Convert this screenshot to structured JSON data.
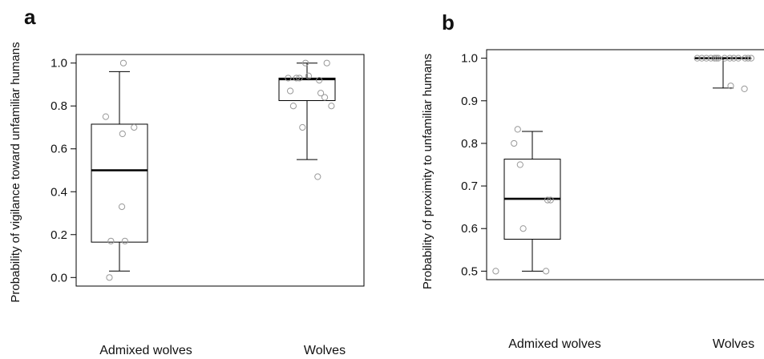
{
  "chart_data": [
    {
      "panel": "a",
      "type": "box",
      "ylabel": "Probability of vigilance toward unfamiliar humans",
      "categories": [
        "Admixed wolves",
        "Wolves"
      ],
      "ylim": [
        -0.04,
        1.04
      ],
      "yticks": [
        "0.0",
        "0.2",
        "0.4",
        "0.6",
        "0.8",
        "1.0"
      ],
      "grid": false,
      "boxes": [
        {
          "whisker_low": 0.03,
          "q1": 0.165,
          "median": 0.5,
          "q3": 0.715,
          "whisker_high": 0.96
        },
        {
          "whisker_low": 0.55,
          "q1": 0.825,
          "median": 0.925,
          "q3": 0.93,
          "whisker_high": 1.0
        }
      ],
      "points": [
        [
          {
            "j": 0.13,
            "y": 1.0
          },
          {
            "j": -0.45,
            "y": 0.75
          },
          {
            "j": 0.48,
            "y": 0.7
          },
          {
            "j": 0.1,
            "y": 0.67
          },
          {
            "j": 0.08,
            "y": 0.33
          },
          {
            "j": -0.28,
            "y": 0.17
          },
          {
            "j": 0.18,
            "y": 0.17
          },
          {
            "j": -0.33,
            "y": 0.0
          }
        ],
        [
          {
            "j": -0.62,
            "y": 0.93
          },
          {
            "j": -0.35,
            "y": 0.93
          },
          {
            "j": -0.25,
            "y": 0.93
          },
          {
            "j": -0.55,
            "y": 0.87
          },
          {
            "j": -0.45,
            "y": 0.8
          },
          {
            "j": -0.05,
            "y": 1.0
          },
          {
            "j": 0.05,
            "y": 0.94
          },
          {
            "j": 0.4,
            "y": 0.92
          },
          {
            "j": 0.65,
            "y": 1.0
          },
          {
            "j": 0.45,
            "y": 0.86
          },
          {
            "j": 0.58,
            "y": 0.84
          },
          {
            "j": 0.8,
            "y": 0.8
          },
          {
            "j": -0.15,
            "y": 0.7
          },
          {
            "j": 0.35,
            "y": 0.47
          }
        ]
      ]
    },
    {
      "panel": "b",
      "type": "box",
      "ylabel": "Probability of proximity to unfamiliar humans",
      "categories": [
        "Admixed wolves",
        "Wolves"
      ],
      "ylim": [
        0.48,
        1.02
      ],
      "yticks": [
        "0.5",
        "0.6",
        "0.7",
        "0.8",
        "0.9",
        "1.0"
      ],
      "grid": false,
      "boxes": [
        {
          "whisker_low": 0.5,
          "q1": 0.575,
          "median": 0.67,
          "q3": 0.763,
          "whisker_high": 0.828
        },
        {
          "whisker_low": 0.93,
          "q1": 1.0,
          "median": 1.0,
          "q3": 1.0,
          "whisker_high": 1.0
        }
      ],
      "points": [
        [
          {
            "j": -0.48,
            "y": 0.833
          },
          {
            "j": -0.6,
            "y": 0.8
          },
          {
            "j": -0.4,
            "y": 0.75
          },
          {
            "j": 0.5,
            "y": 0.667
          },
          {
            "j": 0.6,
            "y": 0.667
          },
          {
            "j": -0.3,
            "y": 0.6
          },
          {
            "j": -1.2,
            "y": 0.5
          },
          {
            "j": 0.45,
            "y": 0.5
          }
        ],
        [
          {
            "j": -0.85,
            "y": 1.0
          },
          {
            "j": -0.7,
            "y": 1.0
          },
          {
            "j": -0.55,
            "y": 1.0
          },
          {
            "j": -0.4,
            "y": 1.0
          },
          {
            "j": -0.28,
            "y": 1.0
          },
          {
            "j": -0.22,
            "y": 1.0
          },
          {
            "j": -0.16,
            "y": 1.0
          },
          {
            "j": 0.05,
            "y": 1.0
          },
          {
            "j": 0.22,
            "y": 1.0
          },
          {
            "j": 0.35,
            "y": 1.0
          },
          {
            "j": 0.5,
            "y": 1.0
          },
          {
            "j": 0.72,
            "y": 1.0
          },
          {
            "j": 0.82,
            "y": 1.0
          },
          {
            "j": 0.92,
            "y": 1.0
          },
          {
            "j": 0.25,
            "y": 0.935
          },
          {
            "j": 0.7,
            "y": 0.928
          }
        ]
      ]
    }
  ]
}
